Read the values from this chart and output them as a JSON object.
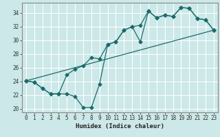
{
  "title": "",
  "xlabel": "Humidex (Indice chaleur)",
  "bg_color": "#cce8e8",
  "line_color": "#1a6b6b",
  "grid_color": "#ffffff",
  "xlim": [
    -0.5,
    23.5
  ],
  "ylim": [
    19.5,
    35.5
  ],
  "yticks": [
    20,
    22,
    24,
    26,
    28,
    30,
    32,
    34
  ],
  "xticks": [
    0,
    1,
    2,
    3,
    4,
    5,
    6,
    7,
    8,
    9,
    10,
    11,
    12,
    13,
    14,
    15,
    16,
    17,
    18,
    19,
    20,
    21,
    22,
    23
  ],
  "series1_x": [
    0,
    1,
    2,
    3,
    4,
    5,
    6,
    7,
    8,
    9,
    10,
    11,
    12,
    13,
    14,
    15,
    16,
    17,
    18,
    19,
    20,
    21,
    22,
    23
  ],
  "series1_y": [
    24.1,
    23.9,
    23.0,
    22.2,
    22.2,
    22.2,
    21.8,
    20.2,
    20.2,
    23.6,
    29.4,
    29.8,
    31.5,
    32.0,
    29.8,
    34.3,
    33.3,
    33.7,
    33.5,
    34.8,
    34.7,
    33.2,
    33.0,
    31.5
  ],
  "series2_x": [
    0,
    1,
    2,
    3,
    4,
    5,
    6,
    7,
    8,
    9,
    10,
    11,
    12,
    13,
    14,
    15,
    16,
    17,
    18,
    19,
    20,
    21,
    22,
    23
  ],
  "series2_y": [
    24.1,
    23.9,
    23.0,
    22.2,
    22.2,
    25.0,
    25.8,
    26.3,
    27.5,
    27.3,
    29.4,
    29.8,
    31.5,
    32.0,
    32.2,
    34.3,
    33.3,
    33.7,
    33.5,
    34.8,
    34.7,
    33.2,
    33.0,
    31.5
  ],
  "series3_x": [
    0,
    23
  ],
  "series3_y": [
    24.1,
    31.5
  ]
}
